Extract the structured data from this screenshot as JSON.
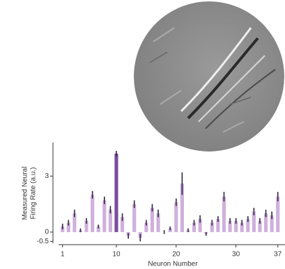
{
  "chart_data": {
    "type": "bar",
    "x": [
      1,
      2,
      3,
      4,
      5,
      6,
      7,
      8,
      9,
      10,
      11,
      12,
      13,
      14,
      15,
      16,
      17,
      18,
      19,
      20,
      21,
      22,
      23,
      24,
      25,
      26,
      27,
      28,
      29,
      30,
      31,
      32,
      33,
      34,
      35,
      36,
      37
    ],
    "values": [
      0.3,
      0.5,
      1.0,
      0.1,
      0.6,
      2.0,
      0.3,
      1.7,
      1.2,
      4.2,
      0.8,
      -0.2,
      1.5,
      -0.3,
      0.5,
      1.3,
      1.0,
      0.0,
      0.2,
      1.6,
      2.6,
      0.1,
      0.5,
      0.7,
      -0.1,
      0.5,
      0.7,
      1.9,
      0.6,
      0.6,
      0.5,
      0.7,
      1.1,
      0.6,
      1.0,
      0.9,
      1.9
    ],
    "errors": [
      0.15,
      0.15,
      0.2,
      0.1,
      0.15,
      0.2,
      0.1,
      0.2,
      0.2,
      0.15,
      0.2,
      0.15,
      0.2,
      0.2,
      0.15,
      0.2,
      0.2,
      0.1,
      0.1,
      0.2,
      0.6,
      0.1,
      0.15,
      0.2,
      0.1,
      0.15,
      0.15,
      0.25,
      0.15,
      0.15,
      0.15,
      0.15,
      0.2,
      0.15,
      0.2,
      0.2,
      0.25
    ],
    "colors": [
      "#cfb0dc",
      "#cfb0dc",
      "#cfb0dc",
      "#cfb0dc",
      "#cfb0dc",
      "#cfb0dc",
      "#cfb0dc",
      "#cfb0dc",
      "#cfb0dc",
      "#7a4d9e",
      "#cfb0dc",
      "#cfb0dc",
      "#cfb0dc",
      "#cfb0dc",
      "#cfb0dc",
      "#cfb0dc",
      "#cfb0dc",
      "#cfb0dc",
      "#cfb0dc",
      "#cfb0dc",
      "#cfb0dc",
      "#cfb0dc",
      "#cfb0dc",
      "#cfb0dc",
      "#cfb0dc",
      "#cfb0dc",
      "#cfb0dc",
      "#cfb0dc",
      "#cfb0dc",
      "#cfb0dc",
      "#cfb0dc",
      "#cfb0dc",
      "#cfb0dc",
      "#cfb0dc",
      "#cfb0dc",
      "#cfb0dc",
      "#cfb0dc"
    ],
    "error_color": "#2f2540",
    "xlim": [
      -0.6,
      38.2
    ],
    "xticks": [
      1,
      10,
      20,
      30,
      37
    ],
    "ylim": [
      -0.6,
      4.8
    ],
    "yticks": [
      -0.5,
      0,
      3
    ],
    "xlabel": "Neuron Number",
    "ylabel": [
      "Measured Neural",
      "Firing Rate (a.u.)"
    ]
  }
}
